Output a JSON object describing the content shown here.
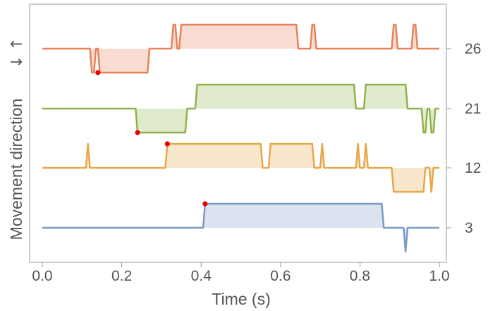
{
  "chart_data": {
    "type": "line",
    "xlabel": "Time (s)",
    "ylabel": "Movement direction",
    "ylabel_arrows": "↓ ↑",
    "xlim": [
      0.0,
      1.0
    ],
    "xticks": [
      "0.0",
      "0.2",
      "0.4",
      "0.6",
      "0.8",
      "1.0"
    ],
    "grid": false,
    "series": [
      {
        "label": "26",
        "color": "#E8825A",
        "onset": [
          0.14,
          -1
        ],
        "points": [
          [
            0.0,
            0
          ],
          [
            0.12,
            0
          ],
          [
            0.125,
            -1
          ],
          [
            0.13,
            -1
          ],
          [
            0.135,
            0
          ],
          [
            0.14,
            0
          ],
          [
            0.145,
            -1
          ],
          [
            0.265,
            -1
          ],
          [
            0.27,
            0
          ],
          [
            0.325,
            0
          ],
          [
            0.33,
            1
          ],
          [
            0.335,
            1
          ],
          [
            0.34,
            0
          ],
          [
            0.345,
            0
          ],
          [
            0.35,
            1
          ],
          [
            0.64,
            1
          ],
          [
            0.645,
            0
          ],
          [
            0.675,
            0
          ],
          [
            0.68,
            1
          ],
          [
            0.685,
            1
          ],
          [
            0.69,
            0
          ],
          [
            0.88,
            0
          ],
          [
            0.885,
            1
          ],
          [
            0.89,
            1
          ],
          [
            0.895,
            0
          ],
          [
            0.93,
            0
          ],
          [
            0.935,
            1
          ],
          [
            0.94,
            1
          ],
          [
            0.945,
            0
          ],
          [
            1.0,
            0
          ]
        ]
      },
      {
        "label": "21",
        "color": "#90B24C",
        "onset": [
          0.24,
          -1
        ],
        "points": [
          [
            0.0,
            0
          ],
          [
            0.235,
            0
          ],
          [
            0.24,
            -1
          ],
          [
            0.36,
            -1
          ],
          [
            0.365,
            0
          ],
          [
            0.385,
            0
          ],
          [
            0.39,
            1
          ],
          [
            0.785,
            1
          ],
          [
            0.79,
            0
          ],
          [
            0.81,
            0
          ],
          [
            0.815,
            1
          ],
          [
            0.915,
            1
          ],
          [
            0.92,
            0
          ],
          [
            0.955,
            0
          ],
          [
            0.96,
            -1
          ],
          [
            0.965,
            -1
          ],
          [
            0.97,
            0
          ],
          [
            0.975,
            0
          ],
          [
            0.98,
            -1
          ],
          [
            0.985,
            -1
          ],
          [
            0.99,
            0
          ],
          [
            1.0,
            0
          ]
        ]
      },
      {
        "label": "12",
        "color": "#E5A84A",
        "onset": [
          0.315,
          1
        ],
        "points": [
          [
            0.0,
            0
          ],
          [
            0.11,
            0
          ],
          [
            0.115,
            1
          ],
          [
            0.12,
            0
          ],
          [
            0.31,
            0
          ],
          [
            0.315,
            1
          ],
          [
            0.55,
            1
          ],
          [
            0.555,
            0
          ],
          [
            0.57,
            0
          ],
          [
            0.575,
            1
          ],
          [
            0.68,
            1
          ],
          [
            0.685,
            0
          ],
          [
            0.7,
            0
          ],
          [
            0.705,
            1
          ],
          [
            0.71,
            0
          ],
          [
            0.79,
            0
          ],
          [
            0.795,
            1
          ],
          [
            0.8,
            0
          ],
          [
            0.81,
            0
          ],
          [
            0.815,
            1
          ],
          [
            0.82,
            0
          ],
          [
            0.88,
            0
          ],
          [
            0.885,
            -1
          ],
          [
            0.96,
            -1
          ],
          [
            0.965,
            0
          ],
          [
            0.975,
            0
          ],
          [
            0.98,
            -1
          ],
          [
            0.985,
            0
          ],
          [
            1.0,
            0
          ]
        ]
      },
      {
        "label": "3",
        "color": "#7A9AC7",
        "onset": [
          0.41,
          1
        ],
        "points": [
          [
            0.0,
            0
          ],
          [
            0.405,
            0
          ],
          [
            0.41,
            1
          ],
          [
            0.855,
            1
          ],
          [
            0.86,
            0
          ],
          [
            0.91,
            0
          ],
          [
            0.915,
            -1
          ],
          [
            0.92,
            0
          ],
          [
            1.0,
            0
          ]
        ]
      }
    ]
  },
  "onset_marker_color": "#E60000"
}
